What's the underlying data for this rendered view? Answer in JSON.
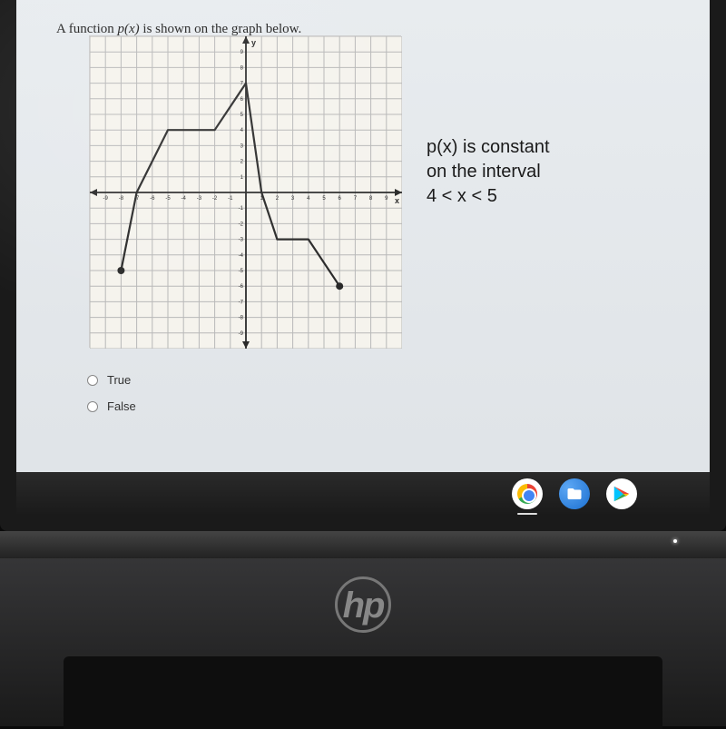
{
  "question": {
    "prompt_prefix": "A function ",
    "prompt_func": "p(x)",
    "prompt_suffix": " is shown on the graph below."
  },
  "statement": {
    "line1": "p(x) is constant",
    "line2": "on the interval",
    "line3": "4 < x < 5"
  },
  "answers": {
    "opt1": "True",
    "opt2": "False"
  },
  "graph": {
    "xlim": [
      -10,
      10
    ],
    "ylim": [
      -10,
      10
    ],
    "tick_step": 1,
    "background_color": "#f5f3ed",
    "grid_color": "#b8b8b8",
    "axis_color": "#2a2a2a",
    "line_color": "#2a2a2a",
    "line_width": 2.2,
    "endpoint_radius": 4,
    "endpoint_color": "#2a2a2a",
    "y_label": "y",
    "x_label": "x",
    "axis_tick_labels_x": [
      "-9",
      "-8",
      "-7",
      "-6",
      "-5",
      "-4",
      "-3",
      "-2",
      "-1",
      "1",
      "2",
      "3",
      "4",
      "5",
      "6",
      "7",
      "8",
      "9"
    ],
    "axis_tick_labels_y": [
      "-9",
      "-8",
      "-7",
      "-6",
      "-5",
      "-4",
      "-3",
      "-2",
      "-1",
      "1",
      "2",
      "3",
      "4",
      "5",
      "6",
      "7",
      "8",
      "9"
    ],
    "points": [
      [
        -8,
        -5
      ],
      [
        -7,
        0
      ],
      [
        -5,
        4
      ],
      [
        -2,
        4
      ],
      [
        0,
        7
      ],
      [
        1,
        0
      ],
      [
        2,
        -3
      ],
      [
        4,
        -3
      ],
      [
        6,
        -6
      ]
    ],
    "closed_endpoints": [
      [
        -8,
        -5
      ],
      [
        6,
        -6
      ]
    ]
  },
  "logo_text": "hp"
}
